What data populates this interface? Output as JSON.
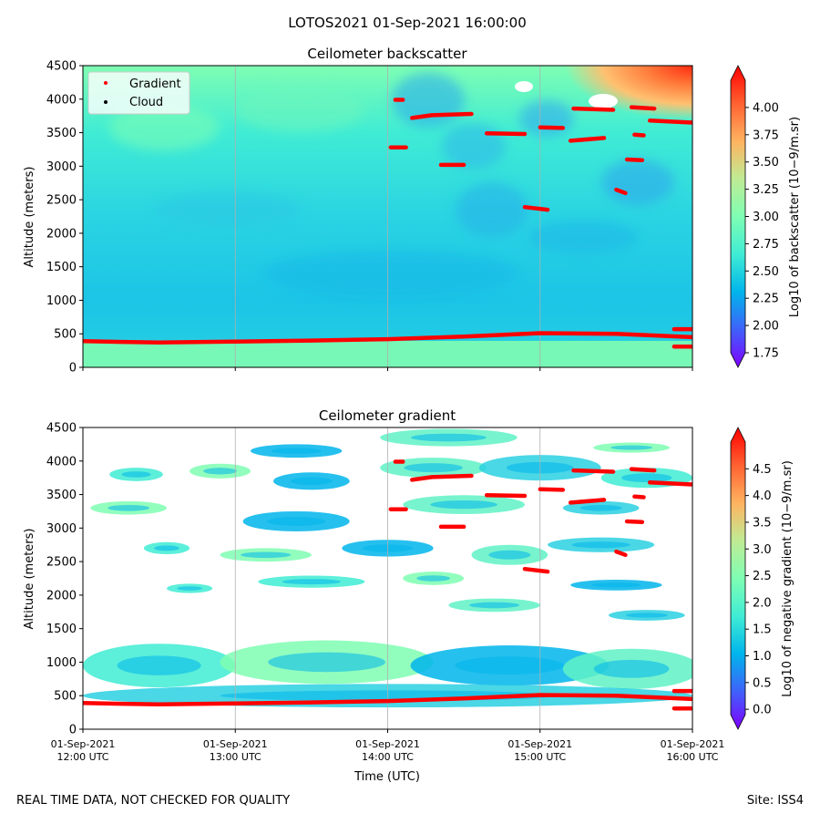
{
  "suptitle": "LOTOS2021 01-Sep-2021 16:00:00",
  "footer_left": "REAL TIME DATA, NOT CHECKED FOR QUALITY",
  "footer_right": "Site: ISS4",
  "colors": {
    "gradient_marker": "#ff0000",
    "cloud_marker": "#000000",
    "colormap": [
      "#7f00ff",
      "#3f61fa",
      "#00b5eb",
      "#40ecd4",
      "#7ffeb3",
      "#bfeb94",
      "#ffb360",
      "#ff6131",
      "#ff0000"
    ]
  },
  "chart_data": [
    {
      "type": "heatmap",
      "title": "Ceilometer backscatter",
      "xlabel": "",
      "ylabel": "Altitude (meters)",
      "ylim": [
        0,
        4500
      ],
      "yticks": [
        "0",
        "500",
        "1000",
        "1500",
        "2000",
        "2500",
        "3000",
        "3500",
        "4000",
        "4500"
      ],
      "xticks": [],
      "grid": "vertical",
      "legend": {
        "placement": "top-left",
        "entries": [
          {
            "label": "Gradient",
            "color": "#ff0000"
          },
          {
            "label": "Cloud",
            "color": "#000000"
          }
        ]
      },
      "colorbar": {
        "label": "Log10 of backscatter (10−9/m.sr)",
        "range": [
          1.75,
          4.25
        ],
        "ticks": [
          "1.75",
          "2.00",
          "2.25",
          "2.50",
          "2.75",
          "3.00",
          "3.25",
          "3.50",
          "3.75",
          "4.00"
        ]
      },
      "gradient_layers": [
        {
          "t": [
            0,
            0.5,
            1,
            1.5,
            2,
            2.5,
            3,
            3.5,
            4
          ],
          "alt": [
            390,
            370,
            385,
            400,
            420,
            460,
            510,
            500,
            450
          ]
        },
        {
          "t": [
            2.02,
            2.12
          ],
          "alt": [
            3280,
            3280
          ]
        },
        {
          "t": [
            2.05,
            2.1
          ],
          "alt": [
            3990,
            3990
          ]
        },
        {
          "t": [
            2.16,
            2.29,
            2.55
          ],
          "alt": [
            3720,
            3760,
            3780
          ]
        },
        {
          "t": [
            2.35,
            2.5
          ],
          "alt": [
            3020,
            3020
          ]
        },
        {
          "t": [
            2.65,
            2.9
          ],
          "alt": [
            3490,
            3480
          ]
        },
        {
          "t": [
            2.9,
            3.05
          ],
          "alt": [
            2390,
            2350
          ]
        },
        {
          "t": [
            3.0,
            3.15
          ],
          "alt": [
            3580,
            3570
          ]
        },
        {
          "t": [
            3.2,
            3.42
          ],
          "alt": [
            3380,
            3420
          ]
        },
        {
          "t": [
            3.22,
            3.48
          ],
          "alt": [
            3860,
            3840
          ]
        },
        {
          "t": [
            3.57,
            3.67
          ],
          "alt": [
            3100,
            3090
          ]
        },
        {
          "t": [
            3.5,
            3.56
          ],
          "alt": [
            2650,
            2600
          ]
        },
        {
          "t": [
            3.62,
            3.68
          ],
          "alt": [
            3470,
            3460
          ]
        },
        {
          "t": [
            3.72,
            4.0
          ],
          "alt": [
            3680,
            3650
          ]
        },
        {
          "t": [
            3.6,
            3.75
          ],
          "alt": [
            3880,
            3860
          ]
        },
        {
          "t": [
            3.88,
            4.0
          ],
          "alt": [
            570,
            570
          ]
        },
        {
          "t": [
            3.88,
            4.0
          ],
          "alt": [
            310,
            310
          ]
        }
      ]
    },
    {
      "type": "heatmap",
      "title": "Ceilometer gradient",
      "xlabel": "Time (UTC)",
      "ylabel": "Altitude (meters)",
      "ylim": [
        0,
        4500
      ],
      "yticks": [
        "0",
        "500",
        "1000",
        "1500",
        "2000",
        "2500",
        "3000",
        "3500",
        "4000",
        "4500"
      ],
      "xticks": [
        {
          "date": "01-Sep-2021",
          "time": "12:00 UTC"
        },
        {
          "date": "01-Sep-2021",
          "time": "13:00 UTC"
        },
        {
          "date": "01-Sep-2021",
          "time": "14:00 UTC"
        },
        {
          "date": "01-Sep-2021",
          "time": "15:00 UTC"
        },
        {
          "date": "01-Sep-2021",
          "time": "16:00 UTC"
        }
      ],
      "grid": "vertical",
      "colorbar": {
        "label": "Log10 of negative gradient (10−9/m.sr)",
        "range": [
          -0.1,
          5.0
        ],
        "ticks": [
          "0.0",
          "0.5",
          "1.0",
          "1.5",
          "2.0",
          "2.5",
          "3.0",
          "3.5",
          "4.0",
          "4.5"
        ]
      },
      "patches": [
        {
          "t": 0.5,
          "alt": 950,
          "w": 1.0,
          "h": 650
        },
        {
          "t": 1.6,
          "alt": 1000,
          "w": 1.4,
          "h": 650
        },
        {
          "t": 2.8,
          "alt": 950,
          "w": 1.3,
          "h": 600
        },
        {
          "t": 3.6,
          "alt": 900,
          "w": 0.9,
          "h": 600
        },
        {
          "t": 2.0,
          "alt": 500,
          "w": 4.0,
          "h": 350
        },
        {
          "t": 0.35,
          "alt": 3800,
          "w": 0.35,
          "h": 200
        },
        {
          "t": 0.9,
          "alt": 3850,
          "w": 0.4,
          "h": 220
        },
        {
          "t": 1.5,
          "alt": 3700,
          "w": 0.5,
          "h": 260
        },
        {
          "t": 2.3,
          "alt": 3900,
          "w": 0.7,
          "h": 300
        },
        {
          "t": 3.0,
          "alt": 3900,
          "w": 0.8,
          "h": 380
        },
        {
          "t": 3.7,
          "alt": 3750,
          "w": 0.6,
          "h": 300
        },
        {
          "t": 0.3,
          "alt": 3300,
          "w": 0.5,
          "h": 200
        },
        {
          "t": 1.4,
          "alt": 3100,
          "w": 0.7,
          "h": 300
        },
        {
          "t": 2.5,
          "alt": 3350,
          "w": 0.8,
          "h": 280
        },
        {
          "t": 3.4,
          "alt": 3300,
          "w": 0.5,
          "h": 200
        },
        {
          "t": 0.55,
          "alt": 2700,
          "w": 0.3,
          "h": 180
        },
        {
          "t": 1.2,
          "alt": 2600,
          "w": 0.6,
          "h": 200
        },
        {
          "t": 2.0,
          "alt": 2700,
          "w": 0.6,
          "h": 250
        },
        {
          "t": 2.8,
          "alt": 2600,
          "w": 0.5,
          "h": 300
        },
        {
          "t": 3.4,
          "alt": 2750,
          "w": 0.7,
          "h": 220
        },
        {
          "t": 1.5,
          "alt": 2200,
          "w": 0.7,
          "h": 180
        },
        {
          "t": 2.3,
          "alt": 2250,
          "w": 0.4,
          "h": 200
        },
        {
          "t": 3.5,
          "alt": 2150,
          "w": 0.6,
          "h": 160
        },
        {
          "t": 2.7,
          "alt": 1850,
          "w": 0.6,
          "h": 200
        },
        {
          "t": 3.7,
          "alt": 1700,
          "w": 0.5,
          "h": 160
        },
        {
          "t": 0.7,
          "alt": 2100,
          "w": 0.3,
          "h": 140
        },
        {
          "t": 3.6,
          "alt": 4200,
          "w": 0.5,
          "h": 150
        },
        {
          "t": 1.4,
          "alt": 4150,
          "w": 0.6,
          "h": 200
        },
        {
          "t": 2.4,
          "alt": 4350,
          "w": 0.9,
          "h": 260
        }
      ],
      "gradient_layers": [
        {
          "t": [
            0,
            0.5,
            1,
            1.5,
            2,
            2.5,
            3,
            3.5,
            4
          ],
          "alt": [
            390,
            370,
            385,
            400,
            420,
            460,
            510,
            500,
            450
          ]
        },
        {
          "t": [
            2.02,
            2.12
          ],
          "alt": [
            3280,
            3280
          ]
        },
        {
          "t": [
            2.05,
            2.1
          ],
          "alt": [
            3990,
            3990
          ]
        },
        {
          "t": [
            2.16,
            2.29,
            2.55
          ],
          "alt": [
            3720,
            3760,
            3780
          ]
        },
        {
          "t": [
            2.35,
            2.5
          ],
          "alt": [
            3020,
            3020
          ]
        },
        {
          "t": [
            2.65,
            2.9
          ],
          "alt": [
            3490,
            3480
          ]
        },
        {
          "t": [
            2.9,
            3.05
          ],
          "alt": [
            2390,
            2350
          ]
        },
        {
          "t": [
            3.0,
            3.15
          ],
          "alt": [
            3580,
            3570
          ]
        },
        {
          "t": [
            3.2,
            3.42
          ],
          "alt": [
            3380,
            3420
          ]
        },
        {
          "t": [
            3.22,
            3.48
          ],
          "alt": [
            3860,
            3840
          ]
        },
        {
          "t": [
            3.57,
            3.67
          ],
          "alt": [
            3100,
            3090
          ]
        },
        {
          "t": [
            3.5,
            3.56
          ],
          "alt": [
            2650,
            2600
          ]
        },
        {
          "t": [
            3.62,
            3.68
          ],
          "alt": [
            3470,
            3460
          ]
        },
        {
          "t": [
            3.72,
            4.0
          ],
          "alt": [
            3680,
            3650
          ]
        },
        {
          "t": [
            3.6,
            3.75
          ],
          "alt": [
            3880,
            3860
          ]
        },
        {
          "t": [
            3.88,
            4.0
          ],
          "alt": [
            570,
            570
          ]
        },
        {
          "t": [
            3.88,
            4.0
          ],
          "alt": [
            310,
            310
          ]
        }
      ]
    }
  ]
}
